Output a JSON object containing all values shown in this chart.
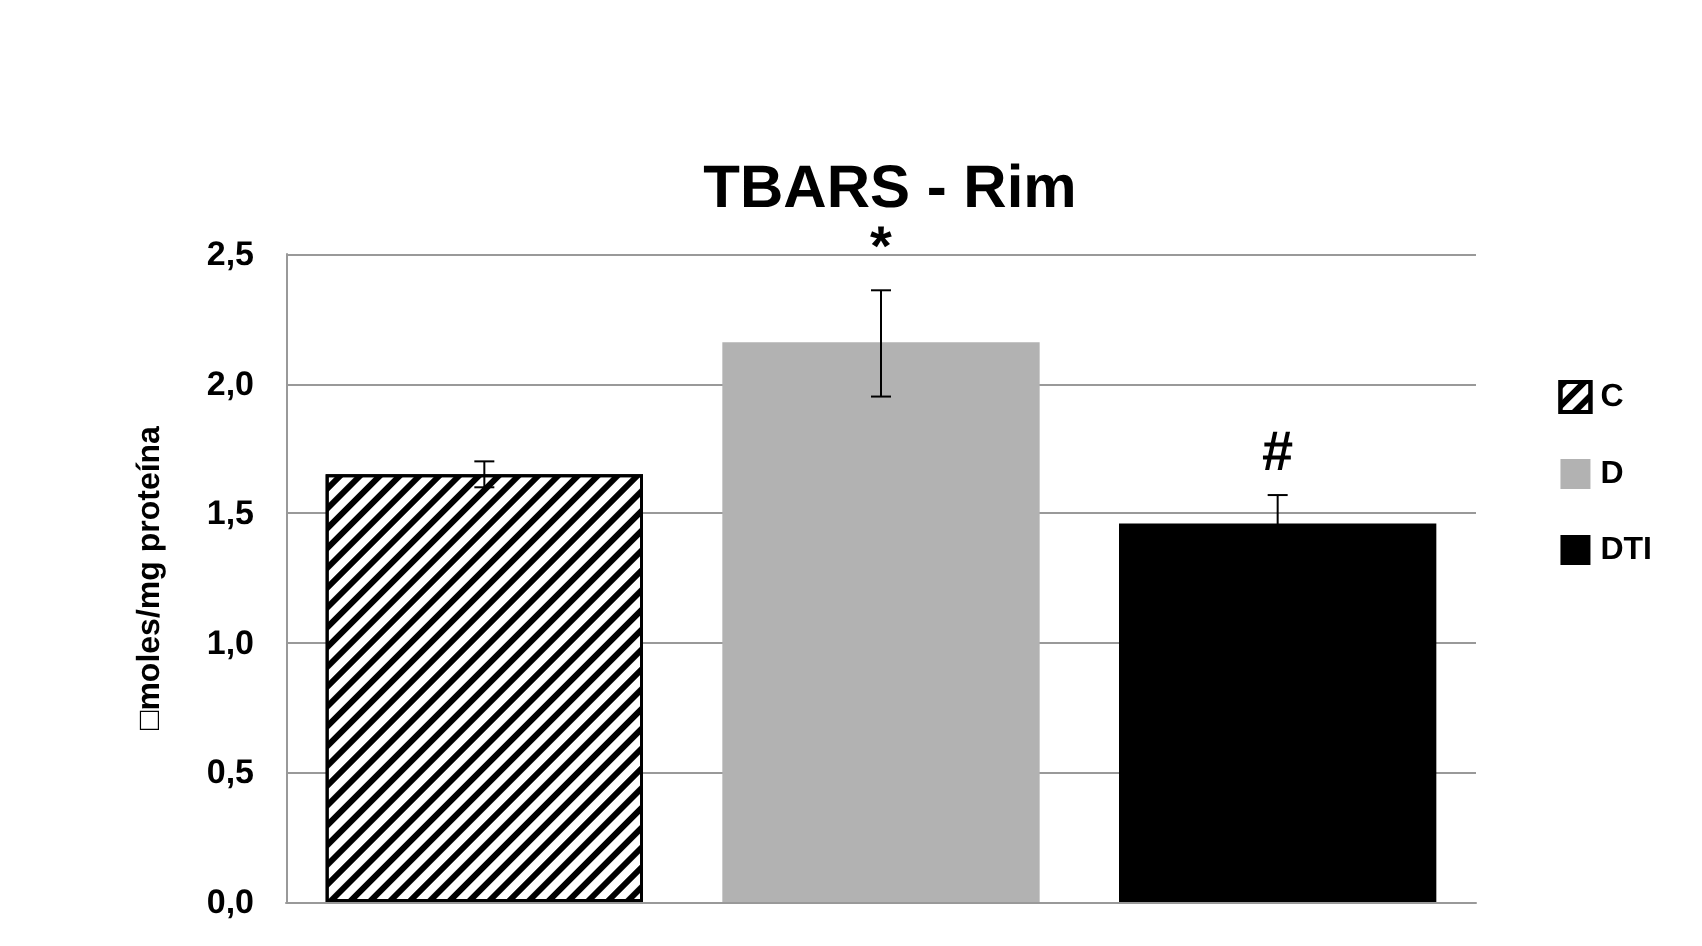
{
  "chart_data": {
    "type": "bar",
    "title": "TBARS - Rim",
    "ylabel": "□moles/mg proteína",
    "categories": [
      null,
      null,
      null
    ],
    "series": [
      {
        "name": "C",
        "color": "#ffffff",
        "values": [
          1.65,
          null,
          null
        ],
        "errors": [
          0.05,
          null,
          null
        ],
        "value_labels": [
          null,
          null,
          null
        ]
      },
      {
        "name": "D",
        "color": "#b2b2b2",
        "values": [
          null,
          2.16,
          null
        ],
        "errors": [
          null,
          [
            1.95,
            2.36
          ],
          null
        ],
        "value_labels": [
          null,
          "*",
          null
        ]
      },
      {
        "name": "DTI",
        "color": "#000000",
        "values": [
          null,
          null,
          1.46
        ],
        "errors": [
          null,
          null,
          0.11
        ],
        "value_labels": [
          null,
          null,
          "#"
        ]
      }
    ],
    "ylim": [
      0,
      2.5
    ],
    "yticks": [
      {
        "value": 0,
        "label": "0,0"
      },
      {
        "value": 0.5,
        "label": "0,5"
      },
      {
        "value": 1,
        "label": "1,0"
      },
      {
        "value": 1.5,
        "label": "1,5"
      },
      {
        "value": 2,
        "label": "2,0"
      },
      {
        "value": 2.5,
        "label": "2,5"
      }
    ],
    "grid": "y",
    "legend": "right"
  }
}
